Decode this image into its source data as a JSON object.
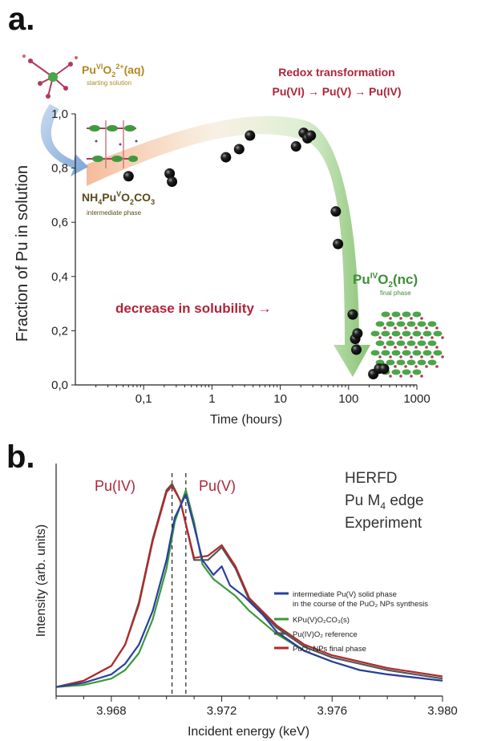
{
  "panel_a": {
    "letter": "a.",
    "start_label": "Pu",
    "start_label_sup": "VI",
    "start_label_rest": "O",
    "start_label_sub": "2",
    "start_label_charge": "2+",
    "start_label_tail": "(aq)",
    "start_sub": "starting solution",
    "redox_title": "Redox transformation",
    "redox_chain": "Pu(VI) → Pu(V) → Pu(IV)",
    "inter_label_main": "NH",
    "inter_label_sub1": "4",
    "inter_label_pu": "Pu",
    "inter_label_sup": "V",
    "inter_label_o": "O",
    "inter_label_sub2": "2",
    "inter_label_co": "CO",
    "inter_label_sub3": "3",
    "inter_sub": "intermediate phase",
    "final_label_pu": "Pu",
    "final_label_sup": "IV",
    "final_label_o": "O",
    "final_label_sub": "2",
    "final_label_tail": "(nc)",
    "final_sub": "final phase",
    "solubility": "decrease in solubility →",
    "colors": {
      "annotation_red": "#b0243a",
      "gold": "#b08a1e",
      "green": "#3e8f3a",
      "marker": "#111111"
    }
  },
  "panel_b": {
    "letter": "b.",
    "peak_iv": "Pu(IV)",
    "peak_v": "Pu(V)",
    "header_lines": [
      "HERFD",
      "Pu M",
      "edge",
      "Experiment"
    ],
    "header_sub": "4",
    "legend": [
      {
        "name": "intermediate Pu(V) solid phase",
        "line2": "in the course of the PuO₂ NPs synthesis",
        "color": "#2a3fa0"
      },
      {
        "name": "KPu(V)O₂CO₃(s)",
        "color": "#3a9a3a"
      },
      {
        "name": "Pu(IV)O₂ reference",
        "color": "#555555"
      },
      {
        "name": "PuO₂ NPs final phase",
        "color": "#b02a2a"
      }
    ]
  },
  "chart_data": [
    {
      "type": "scatter",
      "xlabel": "Time (hours)",
      "ylabel": "Fraction of Pu in solution",
      "xscale": "log",
      "xlim": [
        0.01,
        1000
      ],
      "ylim": [
        0.0,
        1.0
      ],
      "xticks": [
        "0,1",
        "1",
        "10",
        "100",
        "1000"
      ],
      "yticks": [
        "0,0",
        "0,2",
        "0,4",
        "0,6",
        "0,8",
        "1,0"
      ],
      "points": [
        [
          0.06,
          0.77
        ],
        [
          0.24,
          0.78
        ],
        [
          0.26,
          0.75
        ],
        [
          1.6,
          0.84
        ],
        [
          2.5,
          0.87
        ],
        [
          3.6,
          0.92
        ],
        [
          17,
          0.88
        ],
        [
          22,
          0.93
        ],
        [
          25,
          0.91
        ],
        [
          28,
          0.92
        ],
        [
          65,
          0.64
        ],
        [
          70,
          0.52
        ],
        [
          115,
          0.26
        ],
        [
          125,
          0.17
        ],
        [
          135,
          0.19
        ],
        [
          130,
          0.13
        ],
        [
          230,
          0.04
        ],
        [
          280,
          0.06
        ],
        [
          330,
          0.06
        ]
      ]
    },
    {
      "type": "line",
      "xlabel": "Incident energy (keV)",
      "ylabel": "Intensity (arb. units)",
      "xlim": [
        3.966,
        3.98
      ],
      "xticks": [
        "3.968",
        "3.972",
        "3.976",
        "3.980"
      ],
      "vlines": [
        3.9702,
        3.9707
      ],
      "series": [
        {
          "name": "intermediate Pu(V) solid phase",
          "color": "#2a3fa0",
          "x": [
            3.966,
            3.967,
            3.968,
            3.9685,
            3.969,
            3.9695,
            3.97,
            3.9703,
            3.9707,
            3.971,
            3.9713,
            3.9717,
            3.972,
            3.9723,
            3.9728,
            3.9735,
            3.974,
            3.975,
            3.976,
            3.977,
            3.978,
            3.98
          ],
          "y": [
            0.02,
            0.04,
            0.08,
            0.13,
            0.22,
            0.38,
            0.62,
            0.82,
            0.93,
            0.78,
            0.62,
            0.55,
            0.59,
            0.5,
            0.45,
            0.36,
            0.28,
            0.19,
            0.14,
            0.1,
            0.08,
            0.05
          ]
        },
        {
          "name": "KPu(V)O₂CO₃(s)",
          "color": "#3a9a3a",
          "x": [
            3.966,
            3.967,
            3.968,
            3.9685,
            3.969,
            3.9695,
            3.97,
            3.9703,
            3.9707,
            3.971,
            3.9713,
            3.9717,
            3.972,
            3.9725,
            3.973,
            3.974,
            3.975,
            3.976,
            3.977,
            3.978,
            3.98
          ],
          "y": [
            0.02,
            0.03,
            0.06,
            0.1,
            0.18,
            0.34,
            0.58,
            0.8,
            0.95,
            0.8,
            0.6,
            0.53,
            0.5,
            0.45,
            0.38,
            0.27,
            0.19,
            0.14,
            0.1,
            0.08,
            0.05
          ]
        },
        {
          "name": "Pu(IV)O₂ reference",
          "color": "#555555",
          "x": [
            3.966,
            3.967,
            3.968,
            3.9685,
            3.969,
            3.9695,
            3.97,
            3.9702,
            3.9705,
            3.971,
            3.9715,
            3.972,
            3.9725,
            3.973,
            3.974,
            3.975,
            3.976,
            3.977,
            3.978,
            3.98
          ],
          "y": [
            0.02,
            0.05,
            0.12,
            0.22,
            0.42,
            0.72,
            0.95,
            0.98,
            0.9,
            0.62,
            0.62,
            0.68,
            0.58,
            0.43,
            0.3,
            0.21,
            0.16,
            0.13,
            0.1,
            0.06
          ]
        },
        {
          "name": "PuO₂ NPs final phase",
          "color": "#b02a2a",
          "x": [
            3.966,
            3.967,
            3.968,
            3.9685,
            3.969,
            3.9695,
            3.97,
            3.9702,
            3.9705,
            3.971,
            3.9715,
            3.972,
            3.9725,
            3.973,
            3.974,
            3.975,
            3.976,
            3.977,
            3.978,
            3.98
          ],
          "y": [
            0.02,
            0.05,
            0.12,
            0.22,
            0.41,
            0.71,
            0.94,
            0.97,
            0.9,
            0.63,
            0.64,
            0.69,
            0.59,
            0.44,
            0.31,
            0.22,
            0.17,
            0.14,
            0.11,
            0.07
          ]
        }
      ]
    }
  ]
}
